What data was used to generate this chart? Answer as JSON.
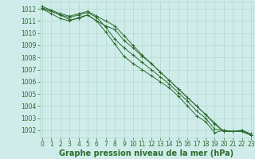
{
  "background_color": "#d0ecea",
  "plot_bg_color": "#d0ecea",
  "grid_color_major": "#b0d8cc",
  "grid_color_minor": "#c0e4d8",
  "line_color": "#2d6b2d",
  "xlabel": "Graphe pression niveau de la mer (hPa)",
  "xlabel_fontsize": 7,
  "tick_fontsize": 5.5,
  "xlim": [
    -0.3,
    23.3
  ],
  "ylim": [
    1001.4,
    1012.6
  ],
  "yticks": [
    1002,
    1003,
    1004,
    1005,
    1006,
    1007,
    1008,
    1009,
    1010,
    1011,
    1012
  ],
  "xticks": [
    0,
    1,
    2,
    3,
    4,
    5,
    6,
    7,
    8,
    9,
    10,
    11,
    12,
    13,
    14,
    15,
    16,
    17,
    18,
    19,
    20,
    21,
    22,
    23
  ],
  "series": [
    [
      1012.0,
      1011.8,
      1011.5,
      1011.1,
      1011.2,
      1011.5,
      1011.0,
      1010.6,
      1010.3,
      1009.4,
      1008.8,
      1008.1,
      1007.5,
      1006.8,
      1006.1,
      1005.4,
      1004.7,
      1004.0,
      1003.3,
      1002.6,
      1001.9,
      1001.9,
      1001.9,
      1001.6
    ],
    [
      1012.2,
      1011.9,
      1011.6,
      1011.4,
      1011.6,
      1011.8,
      1011.4,
      1011.0,
      1010.6,
      1009.8,
      1009.0,
      1008.2,
      1007.5,
      1006.8,
      1006.1,
      1005.4,
      1004.7,
      1004.0,
      1003.3,
      1002.5,
      1001.9,
      1001.9,
      1001.9,
      1001.6
    ],
    [
      1012.1,
      1011.8,
      1011.5,
      1011.3,
      1011.5,
      1011.7,
      1011.3,
      1010.5,
      1009.5,
      1008.8,
      1008.2,
      1007.6,
      1007.0,
      1006.4,
      1005.8,
      1005.1,
      1004.4,
      1003.6,
      1003.0,
      1002.1,
      1002.0,
      1001.9,
      1002.0,
      1001.7
    ],
    [
      1012.0,
      1011.6,
      1011.2,
      1011.0,
      1011.3,
      1011.5,
      1011.0,
      1010.1,
      1009.1,
      1008.1,
      1007.5,
      1007.0,
      1006.5,
      1006.0,
      1005.5,
      1004.8,
      1004.0,
      1003.2,
      1002.7,
      1001.8,
      1002.0,
      1001.9,
      1002.0,
      1001.6
    ]
  ]
}
